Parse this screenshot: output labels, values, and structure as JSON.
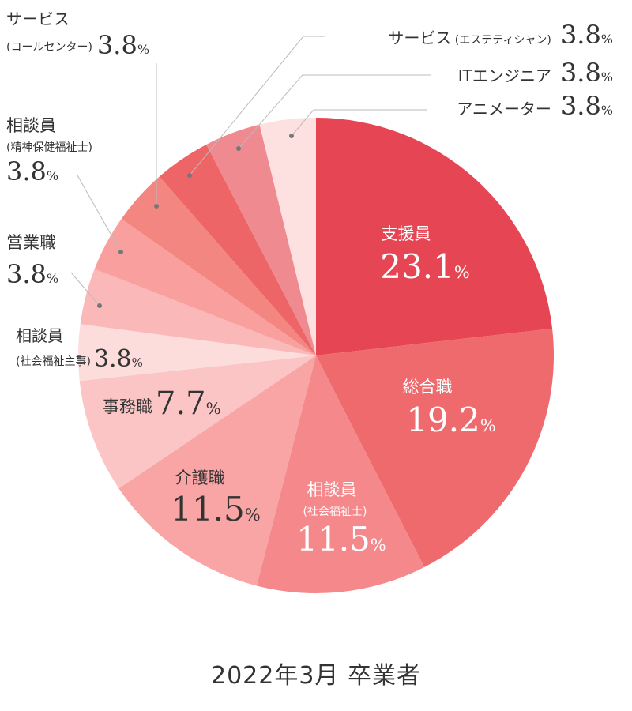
{
  "chart_data": {
    "type": "pie",
    "caption": "2022年3月 卒業者",
    "unit": "%",
    "slices": [
      {
        "label": "支援員",
        "sublabel": "",
        "value": 23.1,
        "color": "#e64553"
      },
      {
        "label": "総合職",
        "sublabel": "",
        "value": 19.2,
        "color": "#ef6a6c"
      },
      {
        "label": "相談員",
        "sublabel": "(社会福祉士)",
        "value": 11.5,
        "color": "#f4888a"
      },
      {
        "label": "介護職",
        "sublabel": "",
        "value": 11.5,
        "color": "#f9a5a5"
      },
      {
        "label": "事務職",
        "sublabel": "",
        "value": 7.7,
        "color": "#fcc5c5"
      },
      {
        "label": "相談員",
        "sublabel": "(社会福祉主事)",
        "value": 3.8,
        "color": "#fddcdc"
      },
      {
        "label": "営業職",
        "sublabel": "",
        "value": 3.8,
        "color": "#fbb8b8"
      },
      {
        "label": "相談員",
        "sublabel": "(精神保健福祉士)",
        "value": 3.8,
        "color": "#f9a09e"
      },
      {
        "label": "サービス",
        "sublabel": "(コールセンター)",
        "value": 3.8,
        "color": "#f48681"
      },
      {
        "label": "サービス",
        "sublabel": "(エステティシャン)",
        "value": 3.8,
        "color": "#ee6567"
      },
      {
        "label": "ITエンジニア",
        "sublabel": "",
        "value": 3.8,
        "color": "#ef8a90"
      },
      {
        "label": "アニメーター",
        "sublabel": "",
        "value": 3.8,
        "color": "#fde0e0"
      }
    ]
  }
}
